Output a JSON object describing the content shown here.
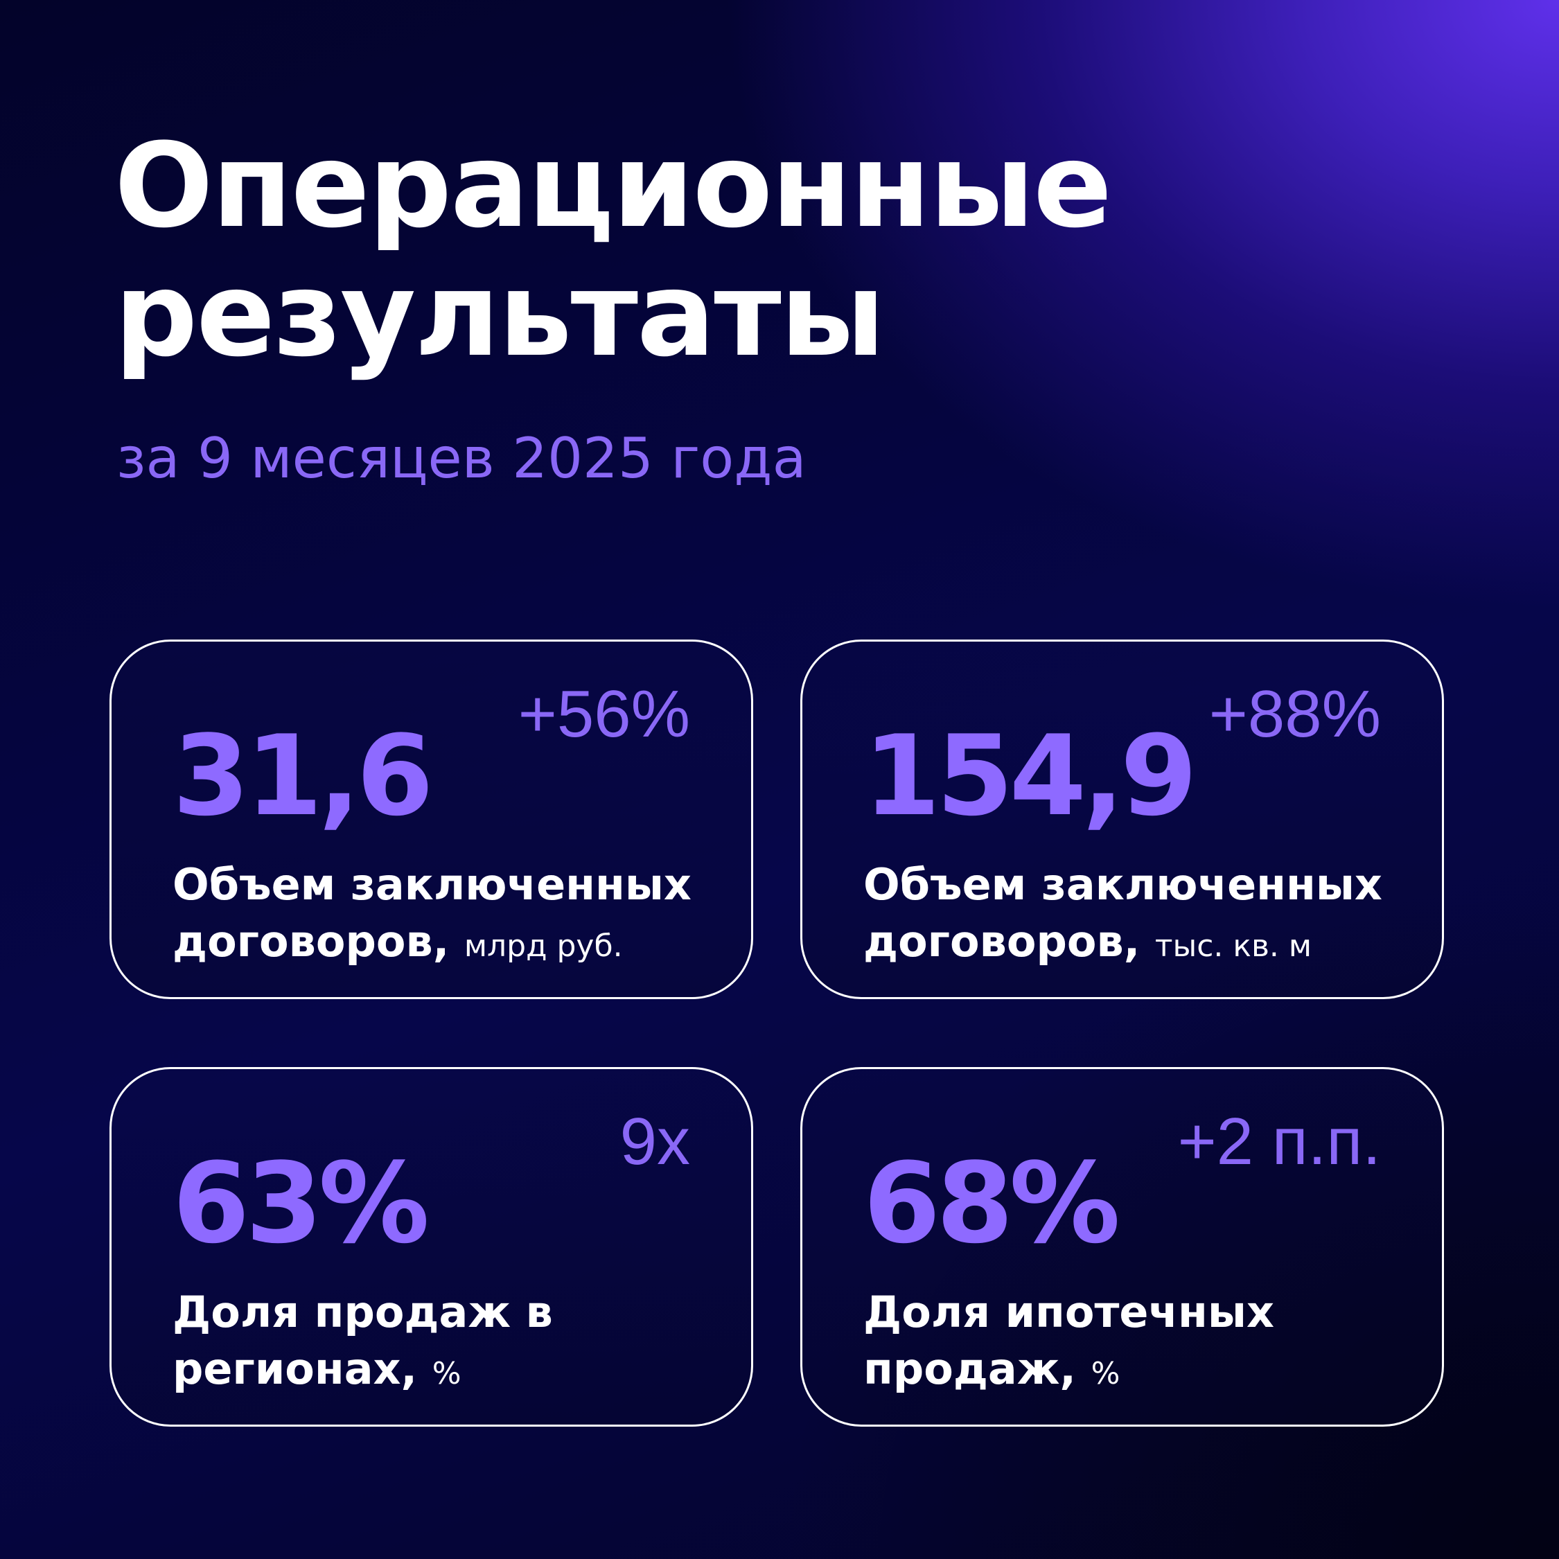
{
  "title_line1": "Операционные",
  "title_line2": "результаты",
  "subtitle": "за 9 месяцев 2025 года",
  "cards": [
    {
      "value": "31,6",
      "delta": "+56%",
      "label_line1": "Объем заключенных",
      "label_line2": "договоров,",
      "unit": "млрд руб."
    },
    {
      "value": "154,9",
      "delta": "+88%",
      "label_line1": "Объем заключенных",
      "label_line2": "договоров,",
      "unit": "тыс. кв. м"
    },
    {
      "value": "63%",
      "delta": "9x",
      "label_line1": "Доля продаж в",
      "label_line2": "регионах,",
      "unit": "%"
    },
    {
      "value": "68%",
      "delta": "+2 п.п.",
      "label_line1": "Доля ипотечных",
      "label_line2": "продаж,",
      "unit": "%"
    }
  ],
  "colors": {
    "accent": "#8e6aff",
    "subtitle": "#8a68f6",
    "background": "#05053a",
    "glow": "#5f30ea"
  }
}
